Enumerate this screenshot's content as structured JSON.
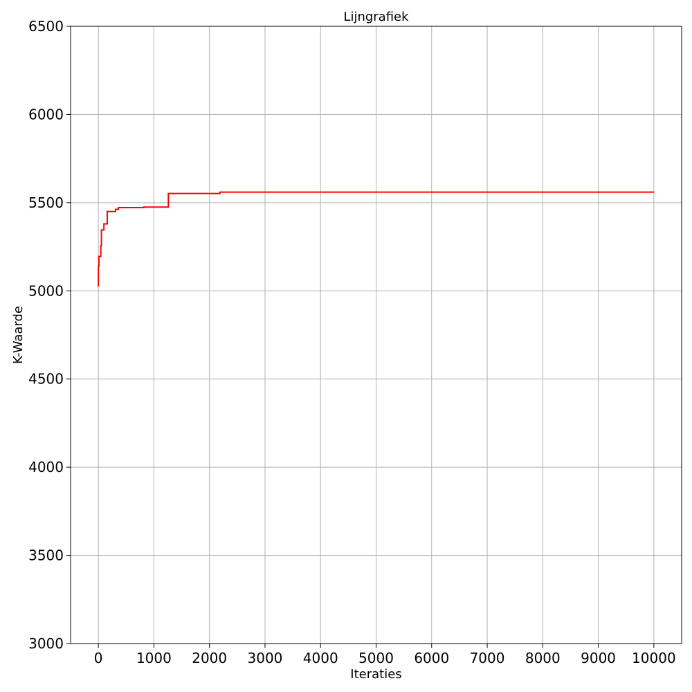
{
  "chart_data": {
    "type": "line",
    "title": "Lijngrafiek",
    "xlabel": "Iteraties",
    "ylabel": "K-Waarde",
    "xlim": [
      -500,
      10500
    ],
    "ylim": [
      3000,
      6500
    ],
    "x_ticks": [
      0,
      1000,
      2000,
      3000,
      4000,
      5000,
      6000,
      7000,
      8000,
      9000,
      10000
    ],
    "y_ticks": [
      3000,
      3500,
      4000,
      4500,
      5000,
      5500,
      6000,
      6500
    ],
    "grid": true,
    "step": true,
    "series": [
      {
        "color": "#ff0000",
        "points": [
          [
            0,
            5025
          ],
          [
            0,
            5140
          ],
          [
            10,
            5140
          ],
          [
            10,
            5195
          ],
          [
            45,
            5195
          ],
          [
            45,
            5255
          ],
          [
            55,
            5255
          ],
          [
            55,
            5345
          ],
          [
            100,
            5345
          ],
          [
            100,
            5380
          ],
          [
            160,
            5380
          ],
          [
            160,
            5450
          ],
          [
            310,
            5450
          ],
          [
            310,
            5462
          ],
          [
            360,
            5462
          ],
          [
            360,
            5472
          ],
          [
            820,
            5472
          ],
          [
            820,
            5475
          ],
          [
            1260,
            5475
          ],
          [
            1260,
            5552
          ],
          [
            2190,
            5552
          ],
          [
            2190,
            5560
          ],
          [
            10000,
            5560
          ]
        ]
      }
    ]
  }
}
